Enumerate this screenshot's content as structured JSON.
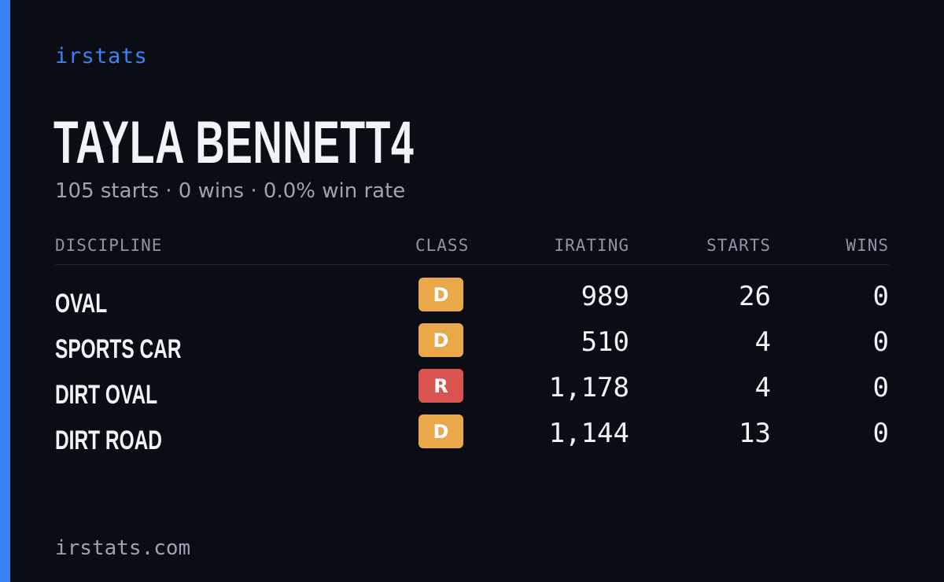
{
  "brand": "irstats",
  "driver_name": "TAYLA BENNETT4",
  "summary": "105 starts · 0 wins · 0.0% win rate",
  "table": {
    "headers": {
      "discipline": "DISCIPLINE",
      "class": "CLASS",
      "irating": "IRATING",
      "starts": "STARTS",
      "wins": "WINS"
    },
    "rows": [
      {
        "discipline": "OVAL",
        "class": "D",
        "class_color": "#e9a94a",
        "irating": "989",
        "starts": "26",
        "wins": "0"
      },
      {
        "discipline": "SPORTS CAR",
        "class": "D",
        "class_color": "#e9a94a",
        "irating": "510",
        "starts": "4",
        "wins": "0"
      },
      {
        "discipline": "DIRT OVAL",
        "class": "R",
        "class_color": "#d9534f",
        "irating": "1,178",
        "starts": "4",
        "wins": "0"
      },
      {
        "discipline": "DIRT ROAD",
        "class": "D",
        "class_color": "#e9a94a",
        "irating": "1,144",
        "starts": "13",
        "wins": "0"
      }
    ]
  },
  "footer": "irstats.com",
  "colors": {
    "background": "#0a0d14",
    "accent": "#3b82f6",
    "class_d": "#e9a94a",
    "class_r": "#d9534f"
  }
}
